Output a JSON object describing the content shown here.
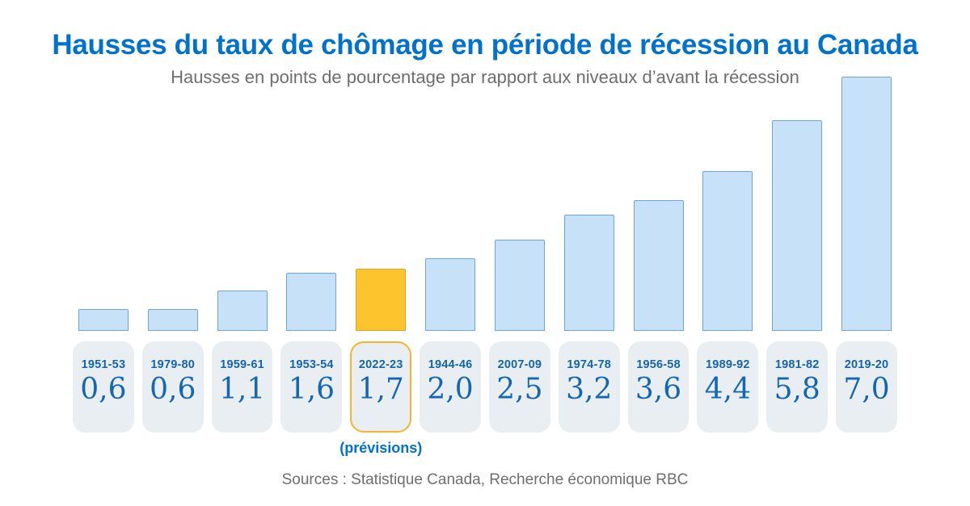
{
  "page": {
    "title": "Hausses du taux de chômage en période de récession au Canada",
    "subtitle": "Hausses en points de pourcentage par rapport aux niveaux d’avant la récession",
    "source": "Sources : Statistique Canada, Recherche économique RBC"
  },
  "chart_data": {
    "type": "bar",
    "title": "Hausses du taux de chômage en période de récession au Canada",
    "subtitle": "Hausses en points de pourcentage par rapport aux niveaux d’avant la récession",
    "categories": [
      "1951-53",
      "1979-80",
      "1959-61",
      "1953-54",
      "2022-23",
      "1944-46",
      "2007-09",
      "1974-78",
      "1956-58",
      "1989-92",
      "1981-82",
      "2019-20"
    ],
    "values": [
      0.6,
      0.6,
      1.1,
      1.6,
      1.7,
      2.0,
      2.5,
      3.2,
      3.6,
      4.4,
      5.8,
      7.0
    ],
    "value_labels": [
      "0,6",
      "0,6",
      "1,1",
      "1,6",
      "1,7",
      "2,0",
      "2,5",
      "3,2",
      "3,6",
      "4,4",
      "5,8",
      "7,0"
    ],
    "highlight_index": 4,
    "highlight_note": "(prévisions)",
    "ylim": [
      0,
      7
    ],
    "grid": false,
    "legend": false,
    "sorted": "ascending by value",
    "colors": {
      "title_blue": "#0072CE",
      "label_blue": "#1565AE",
      "value_blue": "#1467B3",
      "text_gray": "#6E6E6E",
      "bar_fill": "#C7E1F8",
      "bar_border": "#6BA5DB",
      "highlight_fill": "#FDC42D",
      "highlight_border": "#DFA41E",
      "highlight_pill_border": "#F6B42C",
      "pill_bg": "#E9EEF2"
    }
  }
}
